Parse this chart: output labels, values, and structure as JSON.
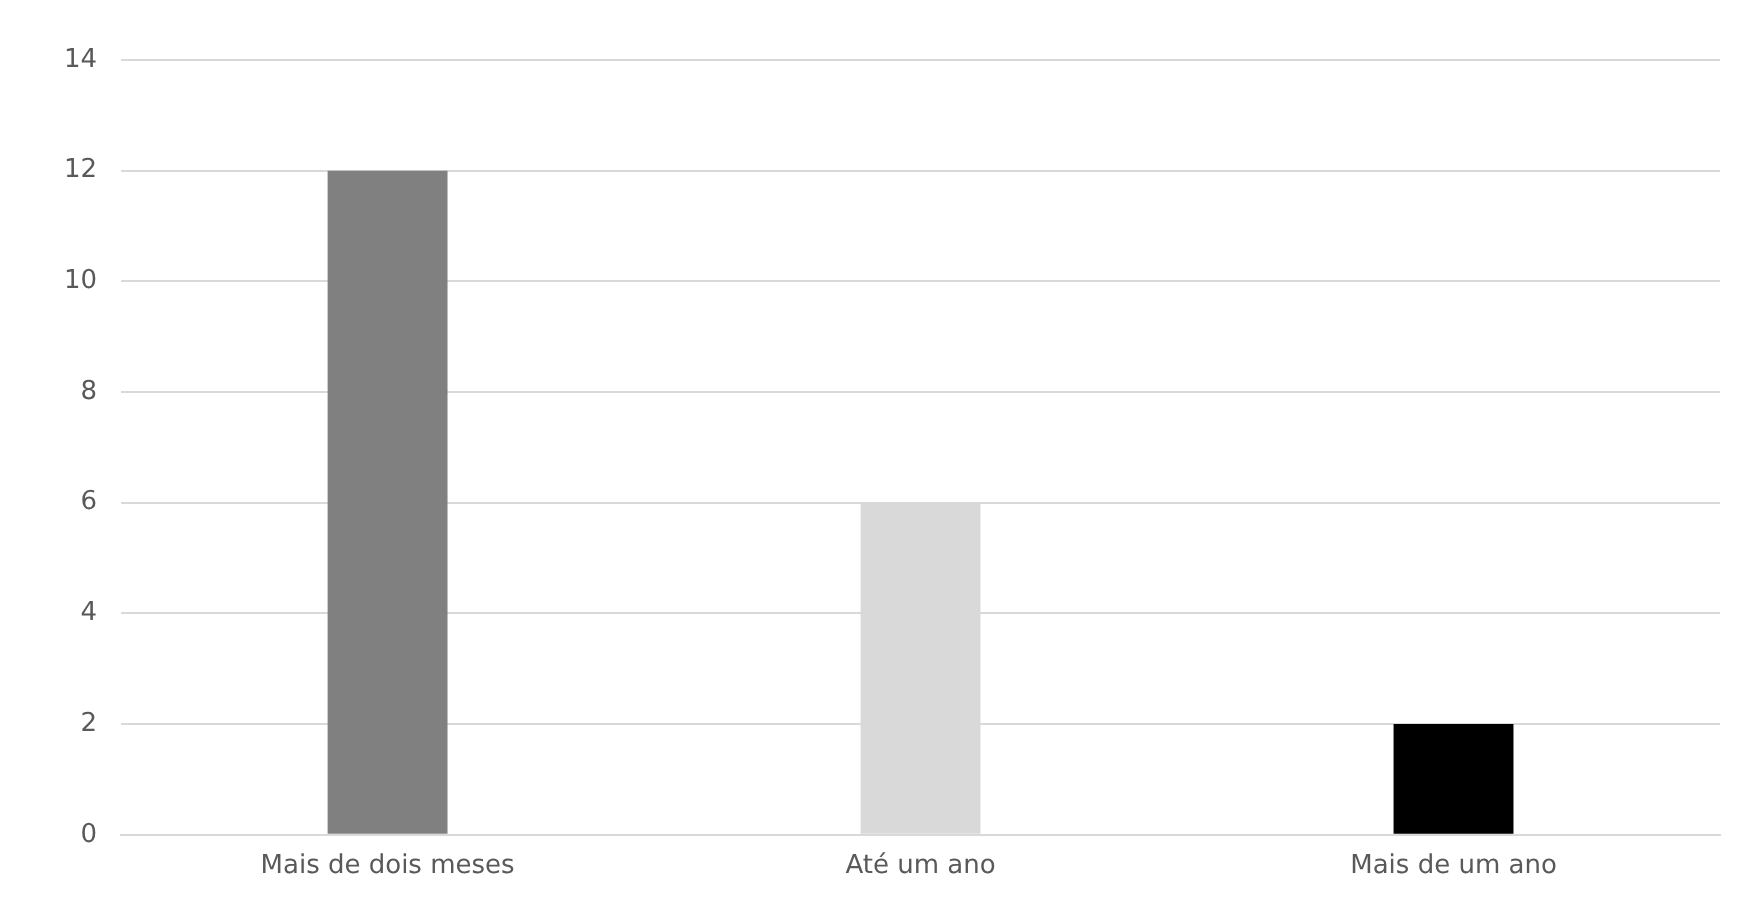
{
  "chart_data": {
    "type": "bar",
    "categories": [
      "Mais de dois meses",
      "Até um ano",
      "Mais de um ano"
    ],
    "values": [
      12,
      6,
      2
    ],
    "colors": [
      "#808080",
      "#d9d9d9",
      "#000000"
    ],
    "ylim": [
      0,
      14
    ],
    "yticks": [
      0,
      2,
      4,
      6,
      8,
      10,
      12,
      14
    ],
    "grid": "y",
    "legend": false
  }
}
